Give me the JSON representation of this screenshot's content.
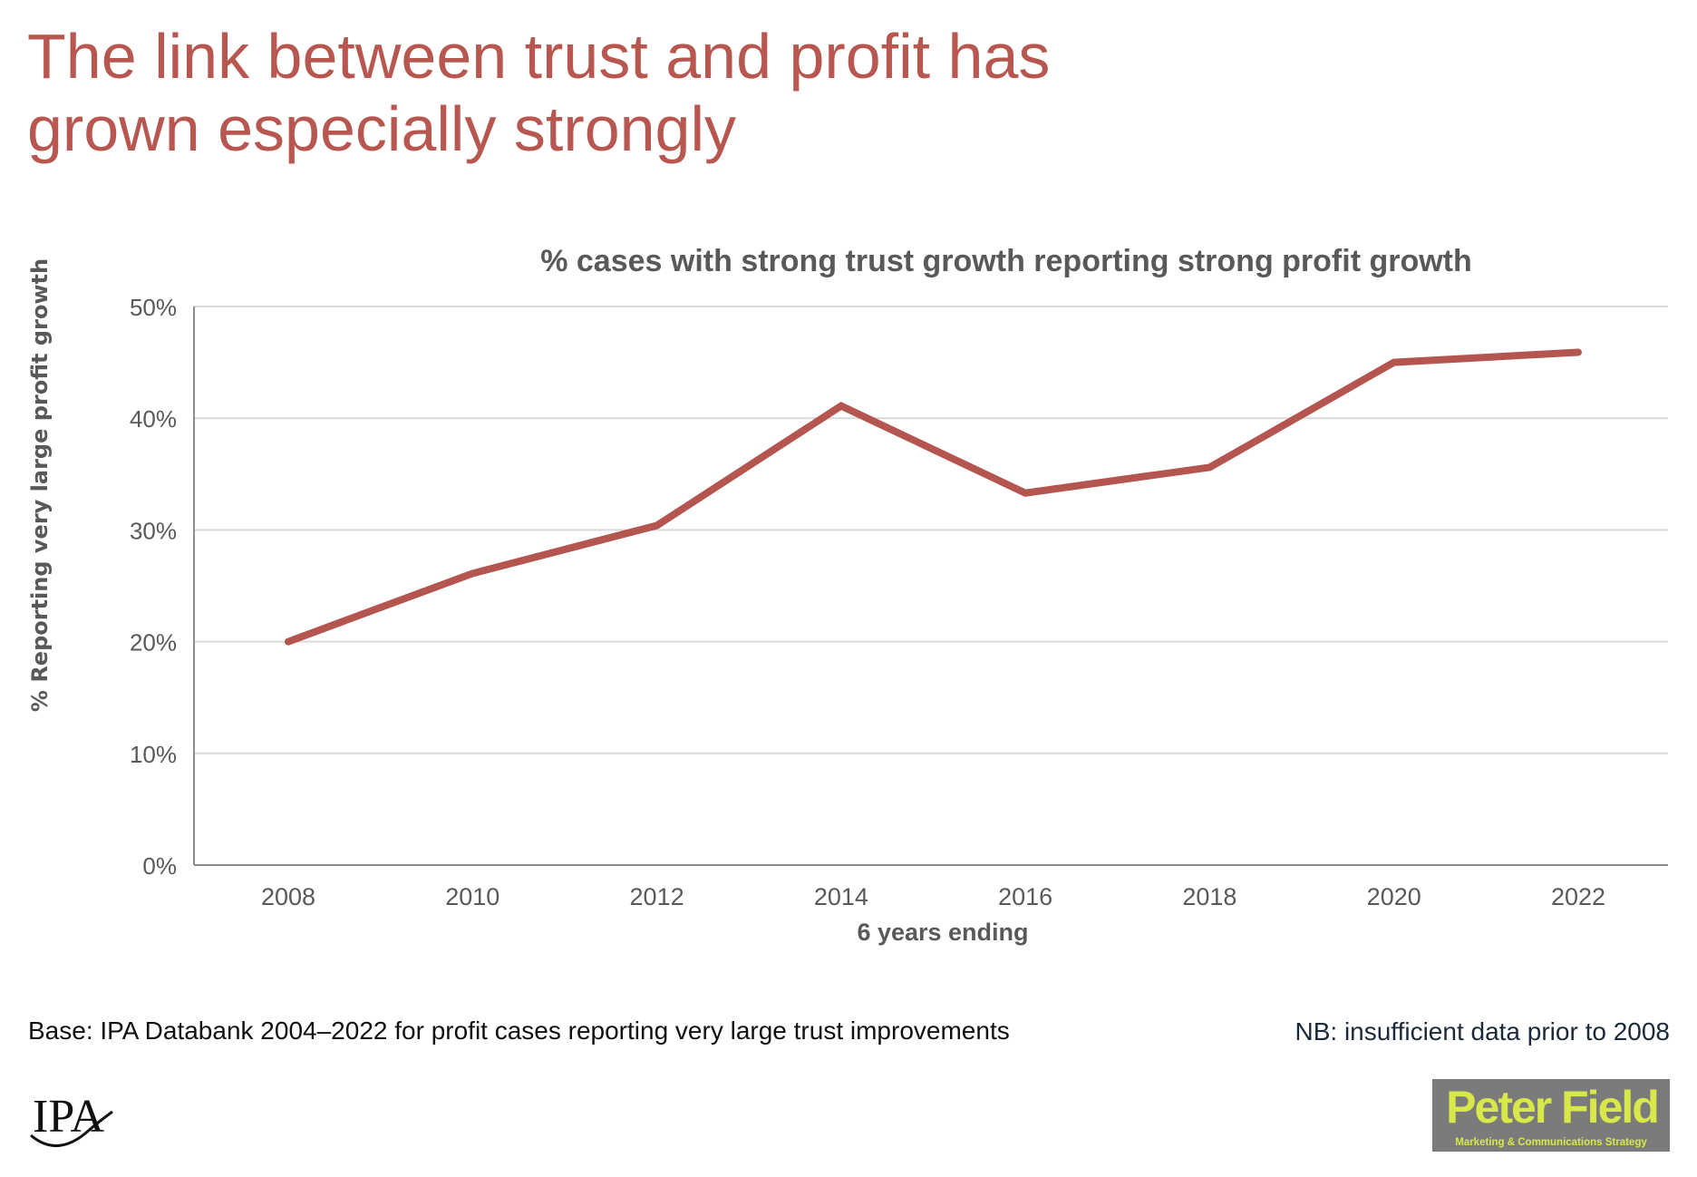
{
  "slide": {
    "title_lines": [
      "The link between trust and profit has",
      "grown especially strongly"
    ],
    "footnote_left": "Base: IPA Databank 2004–2022 for profit cases reporting very large trust improvements",
    "footnote_right": "NB: insufficient data prior to 2008",
    "logos": {
      "ipa": "IPA",
      "peter_field_main": "Peter Field",
      "peter_field_sub": "Marketing & Communications Strategy"
    },
    "colors": {
      "accent": "#B85650",
      "line": "#B5554F",
      "grid": "#D9D9D9",
      "axis_text": "#595959",
      "logo_bg": "#7B7B7B",
      "logo_fg": "#D8E84A"
    }
  },
  "chart_data": {
    "type": "line",
    "title": "% cases with strong trust growth reporting strong profit growth",
    "xlabel": "6 years ending",
    "ylabel": "% Reporting very large profit growth",
    "categories": [
      "2008",
      "2010",
      "2012",
      "2014",
      "2016",
      "2018",
      "2020",
      "2022"
    ],
    "series": [
      {
        "name": "% reporting very large profit growth",
        "values": [
          20.0,
          26.1,
          30.4,
          41.1,
          33.3,
          35.6,
          45.0,
          45.9
        ]
      }
    ],
    "ylim": [
      0,
      50
    ],
    "yticks": [
      0,
      10,
      20,
      30,
      40,
      50
    ],
    "ytick_labels": [
      "0%",
      "10%",
      "20%",
      "30%",
      "40%",
      "50%"
    ],
    "grid": true,
    "legend": "none"
  }
}
